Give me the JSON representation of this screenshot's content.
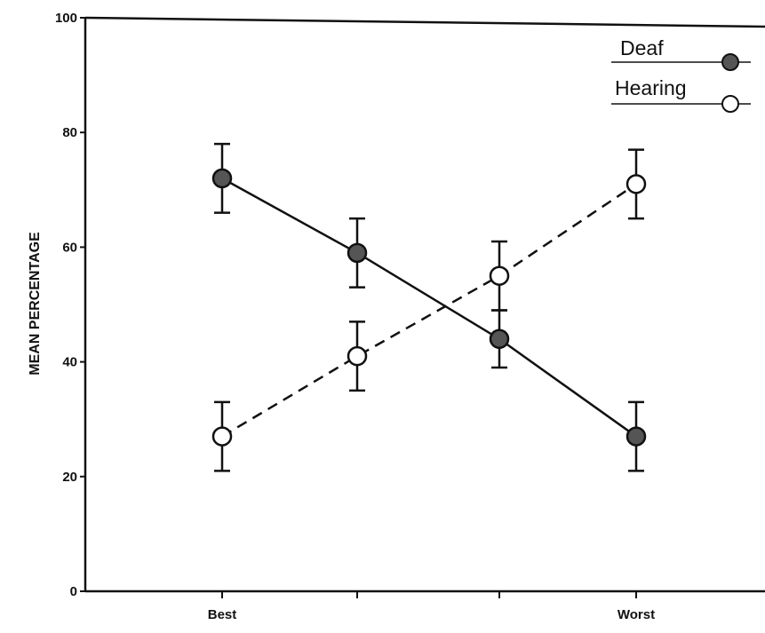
{
  "chart_data": {
    "type": "line",
    "title": "",
    "xlabel": "",
    "ylabel": "MEAN PERCENTAGE",
    "categories": [
      "Best",
      "",
      "",
      "Worst"
    ],
    "ylim": [
      0,
      100
    ],
    "y_ticks": [
      "0",
      "20",
      "40",
      "60",
      "80",
      "100"
    ],
    "grid": false,
    "legend": "top-right",
    "series": [
      {
        "name": "Deaf",
        "values": [
          72,
          59,
          44,
          27
        ],
        "error": [
          6,
          6,
          5,
          6
        ],
        "marker": "filled-circle",
        "line": "solid"
      },
      {
        "name": "Hearing",
        "values": [
          27,
          41,
          55,
          71
        ],
        "error": [
          6,
          6,
          6,
          6
        ],
        "marker": "open-circle",
        "line": "dashed"
      }
    ]
  }
}
